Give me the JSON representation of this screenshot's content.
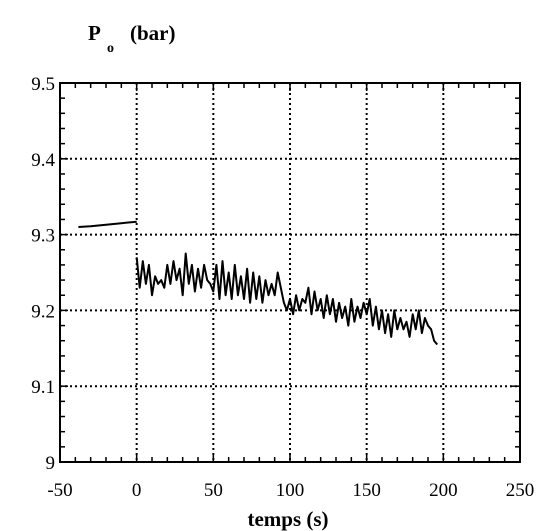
{
  "chart_data": {
    "type": "line",
    "title": "",
    "ylabel": {
      "symbol": "P",
      "subscript": "o",
      "unit": "(bar)"
    },
    "xlabel": "temps  (s)",
    "xlim": [
      -50,
      250
    ],
    "ylim": [
      9,
      9.5
    ],
    "x_ticks": [
      "-50",
      "0",
      "50",
      "100",
      "150",
      "200",
      "250"
    ],
    "y_ticks": [
      "9",
      "9.1",
      "9.2",
      "9.3",
      "9.4",
      "9.5"
    ],
    "grid": true,
    "legend": "none",
    "line_color": "#000000",
    "series": [
      {
        "x": [
          -38,
          -30,
          -20,
          -10,
          0
        ],
        "y": [
          9.31,
          9.311,
          9.313,
          9.315,
          9.317
        ]
      },
      {
        "x": [
          0,
          2,
          4,
          6,
          8,
          10,
          12,
          14,
          16,
          18,
          20,
          22,
          24,
          26,
          28,
          30,
          32,
          34,
          36,
          38,
          40,
          42,
          44,
          46,
          48,
          50,
          52,
          54,
          56,
          58,
          60,
          62,
          64,
          66,
          68,
          70,
          72,
          74,
          76,
          78,
          80,
          82,
          84,
          86,
          88,
          90,
          92,
          94,
          96,
          98,
          100,
          102,
          104,
          106,
          108,
          110,
          112,
          114,
          116,
          118,
          120,
          122,
          124,
          126,
          128,
          130,
          132,
          134,
          136,
          138,
          140,
          142,
          144,
          146,
          148,
          150,
          152,
          154,
          156,
          158,
          160,
          162,
          164,
          166,
          168,
          170,
          172,
          174,
          176,
          178,
          180,
          182,
          184,
          186,
          188,
          190,
          192,
          194,
          196
        ],
        "y": [
          9.27,
          9.23,
          9.265,
          9.235,
          9.26,
          9.22,
          9.245,
          9.235,
          9.24,
          9.23,
          9.26,
          9.235,
          9.265,
          9.24,
          9.255,
          9.22,
          9.275,
          9.235,
          9.26,
          9.225,
          9.255,
          9.23,
          9.26,
          9.24,
          9.235,
          9.225,
          9.26,
          9.215,
          9.265,
          9.22,
          9.25,
          9.215,
          9.26,
          9.22,
          9.245,
          9.215,
          9.255,
          9.21,
          9.25,
          9.215,
          9.245,
          9.21,
          9.24,
          9.22,
          9.235,
          9.22,
          9.25,
          9.23,
          9.21,
          9.2,
          9.215,
          9.195,
          9.22,
          9.2,
          9.215,
          9.21,
          9.23,
          9.195,
          9.225,
          9.2,
          9.215,
          9.19,
          9.22,
          9.195,
          9.215,
          9.185,
          9.21,
          9.19,
          9.205,
          9.18,
          9.215,
          9.185,
          9.205,
          9.19,
          9.21,
          9.195,
          9.215,
          9.18,
          9.205,
          9.175,
          9.2,
          9.17,
          9.195,
          9.165,
          9.2,
          9.175,
          9.19,
          9.175,
          9.185,
          9.165,
          9.195,
          9.175,
          9.2,
          9.17,
          9.19,
          9.18,
          9.175,
          9.16,
          9.155
        ]
      }
    ]
  }
}
